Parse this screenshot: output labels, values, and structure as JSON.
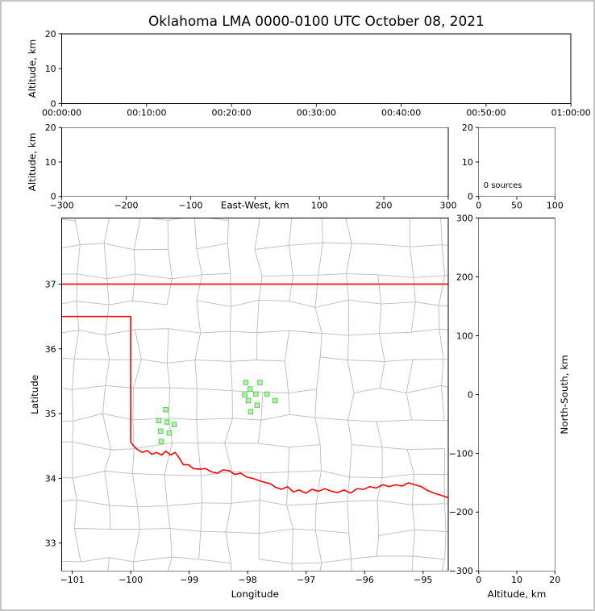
{
  "figure": {
    "title": "Oklahoma LMA 0000-0100 UTC October 08, 2021"
  },
  "colors": {
    "axis": "#000000",
    "state_border": "#ff0000",
    "county_line": "#bbbbbb",
    "station_fill": "#b8f5a8",
    "station_edge": "#55cc55"
  },
  "chart_data": [
    {
      "type": "scatter",
      "name": "time-height",
      "xlabel": "",
      "ylabel": "Altitude, km",
      "xlim": [
        0,
        6
      ],
      "xtick_values": [
        0,
        1,
        2,
        3,
        4,
        5,
        6
      ],
      "xtick_labels": [
        "00:00:00",
        "00:10:00",
        "00:20:00",
        "00:30:00",
        "00:40:00",
        "00:50:00",
        "01:00:00"
      ],
      "ylim": [
        0,
        20
      ],
      "ytick_values": [
        0,
        10,
        20
      ],
      "ytick_labels": [
        "0",
        "10",
        "20"
      ],
      "points": []
    },
    {
      "type": "scatter",
      "name": "east-west-height",
      "xlabel": "East-West, km",
      "ylabel": "Altitude, km",
      "xlim": [
        -300,
        300
      ],
      "xtick_values": [
        -300,
        -200,
        -100,
        0,
        100,
        200,
        300
      ],
      "xtick_labels": [
        "−300",
        "−200",
        "−100",
        "",
        "100",
        "200",
        "300"
      ],
      "ylim": [
        0,
        20
      ],
      "ytick_values": [
        0,
        10,
        20
      ],
      "ytick_labels": [
        "0",
        "10",
        "20"
      ],
      "points": []
    },
    {
      "type": "histogram",
      "name": "altitude-source-histogram",
      "annotation": "0 sources",
      "xlim": [
        0,
        100
      ],
      "xtick_values": [
        0,
        50,
        100
      ],
      "xtick_labels": [
        "0",
        "50",
        "100"
      ],
      "ylim": [
        0,
        20
      ],
      "ytick_values": [
        0,
        10,
        20
      ],
      "ytick_labels": [
        "0",
        "10",
        "20"
      ],
      "values": []
    },
    {
      "type": "map-scatter",
      "name": "plan-view-map",
      "xlabel": "Longitude",
      "ylabel": "Latitude",
      "xlim": [
        -101.18,
        -94.57
      ],
      "xtick_values": [
        -101,
        -100,
        -99,
        -98,
        -97,
        -96,
        -95
      ],
      "xtick_labels": [
        "−101",
        "−100",
        "−99",
        "−98",
        "−97",
        "−96",
        "−95"
      ],
      "ylim": [
        32.57,
        38.02
      ],
      "ytick_values": [
        33,
        34,
        35,
        36,
        37
      ],
      "ytick_labels": [
        "33",
        "34",
        "35",
        "36",
        "37"
      ],
      "stations_lon_lat": [
        [
          -99.4,
          35.06
        ],
        [
          -99.52,
          34.89
        ],
        [
          -99.38,
          34.87
        ],
        [
          -99.26,
          34.83
        ],
        [
          -99.49,
          34.73
        ],
        [
          -99.34,
          34.7
        ],
        [
          -99.48,
          34.57
        ],
        [
          -98.03,
          35.48
        ],
        [
          -97.79,
          35.48
        ],
        [
          -97.96,
          35.38
        ],
        [
          -98.05,
          35.29
        ],
        [
          -97.86,
          35.3
        ],
        [
          -97.67,
          35.3
        ],
        [
          -97.99,
          35.2
        ],
        [
          -97.84,
          35.13
        ],
        [
          -97.95,
          35.03
        ],
        [
          -97.53,
          35.2
        ]
      ],
      "state_border_segments": [
        [
          [
            -101.18,
            37.0
          ],
          [
            -94.57,
            37.0
          ]
        ],
        [
          [
            -101.18,
            36.5
          ],
          [
            -100.0,
            36.5
          ]
        ],
        [
          [
            -100.0,
            36.5
          ],
          [
            -100.0,
            34.56
          ]
        ],
        [
          [
            -100.0,
            34.56
          ],
          [
            -99.95,
            34.5
          ],
          [
            -99.88,
            34.44
          ],
          [
            -99.8,
            34.4
          ],
          [
            -99.72,
            34.43
          ],
          [
            -99.64,
            34.37
          ],
          [
            -99.56,
            34.4
          ],
          [
            -99.47,
            34.36
          ],
          [
            -99.4,
            34.42
          ],
          [
            -99.32,
            34.36
          ],
          [
            -99.24,
            34.4
          ],
          [
            -99.17,
            34.31
          ],
          [
            -99.1,
            34.21
          ],
          [
            -99.01,
            34.21
          ],
          [
            -98.93,
            34.15
          ],
          [
            -98.83,
            34.14
          ],
          [
            -98.72,
            34.15
          ],
          [
            -98.62,
            34.1
          ],
          [
            -98.52,
            34.08
          ],
          [
            -98.42,
            34.13
          ],
          [
            -98.32,
            34.12
          ],
          [
            -98.22,
            34.06
          ],
          [
            -98.12,
            34.08
          ],
          [
            -98.02,
            34.02
          ],
          [
            -97.92,
            34.0
          ],
          [
            -97.82,
            33.97
          ],
          [
            -97.72,
            33.94
          ],
          [
            -97.62,
            33.92
          ],
          [
            -97.52,
            33.86
          ],
          [
            -97.42,
            33.83
          ],
          [
            -97.32,
            33.87
          ],
          [
            -97.22,
            33.79
          ],
          [
            -97.12,
            33.82
          ],
          [
            -97.01,
            33.77
          ],
          [
            -96.9,
            33.83
          ],
          [
            -96.79,
            33.8
          ],
          [
            -96.68,
            33.84
          ],
          [
            -96.57,
            33.8
          ],
          [
            -96.46,
            33.78
          ],
          [
            -96.35,
            33.82
          ],
          [
            -96.24,
            33.77
          ],
          [
            -96.13,
            33.84
          ],
          [
            -96.02,
            33.83
          ],
          [
            -95.91,
            33.87
          ],
          [
            -95.8,
            33.85
          ],
          [
            -95.69,
            33.9
          ],
          [
            -95.58,
            33.87
          ],
          [
            -95.47,
            33.9
          ],
          [
            -95.36,
            33.88
          ],
          [
            -95.25,
            33.93
          ],
          [
            -95.14,
            33.9
          ],
          [
            -95.03,
            33.87
          ],
          [
            -94.92,
            33.81
          ],
          [
            -94.81,
            33.77
          ],
          [
            -94.7,
            33.74
          ],
          [
            -94.57,
            33.7
          ]
        ]
      ]
    },
    {
      "type": "scatter",
      "name": "north-south-height",
      "xlabel": "Altitude, km",
      "ylabel": "North-South, km",
      "xlim": [
        0,
        20
      ],
      "xtick_values": [
        0,
        10,
        20
      ],
      "xtick_labels": [
        "0",
        "10",
        "20"
      ],
      "ylim": [
        -300,
        300
      ],
      "ytick_values": [
        -300,
        -200,
        -100,
        0,
        100,
        200,
        300
      ],
      "ytick_labels": [
        "−300",
        "−200",
        "−100",
        "0",
        "100",
        "200",
        "300"
      ],
      "points": []
    }
  ]
}
